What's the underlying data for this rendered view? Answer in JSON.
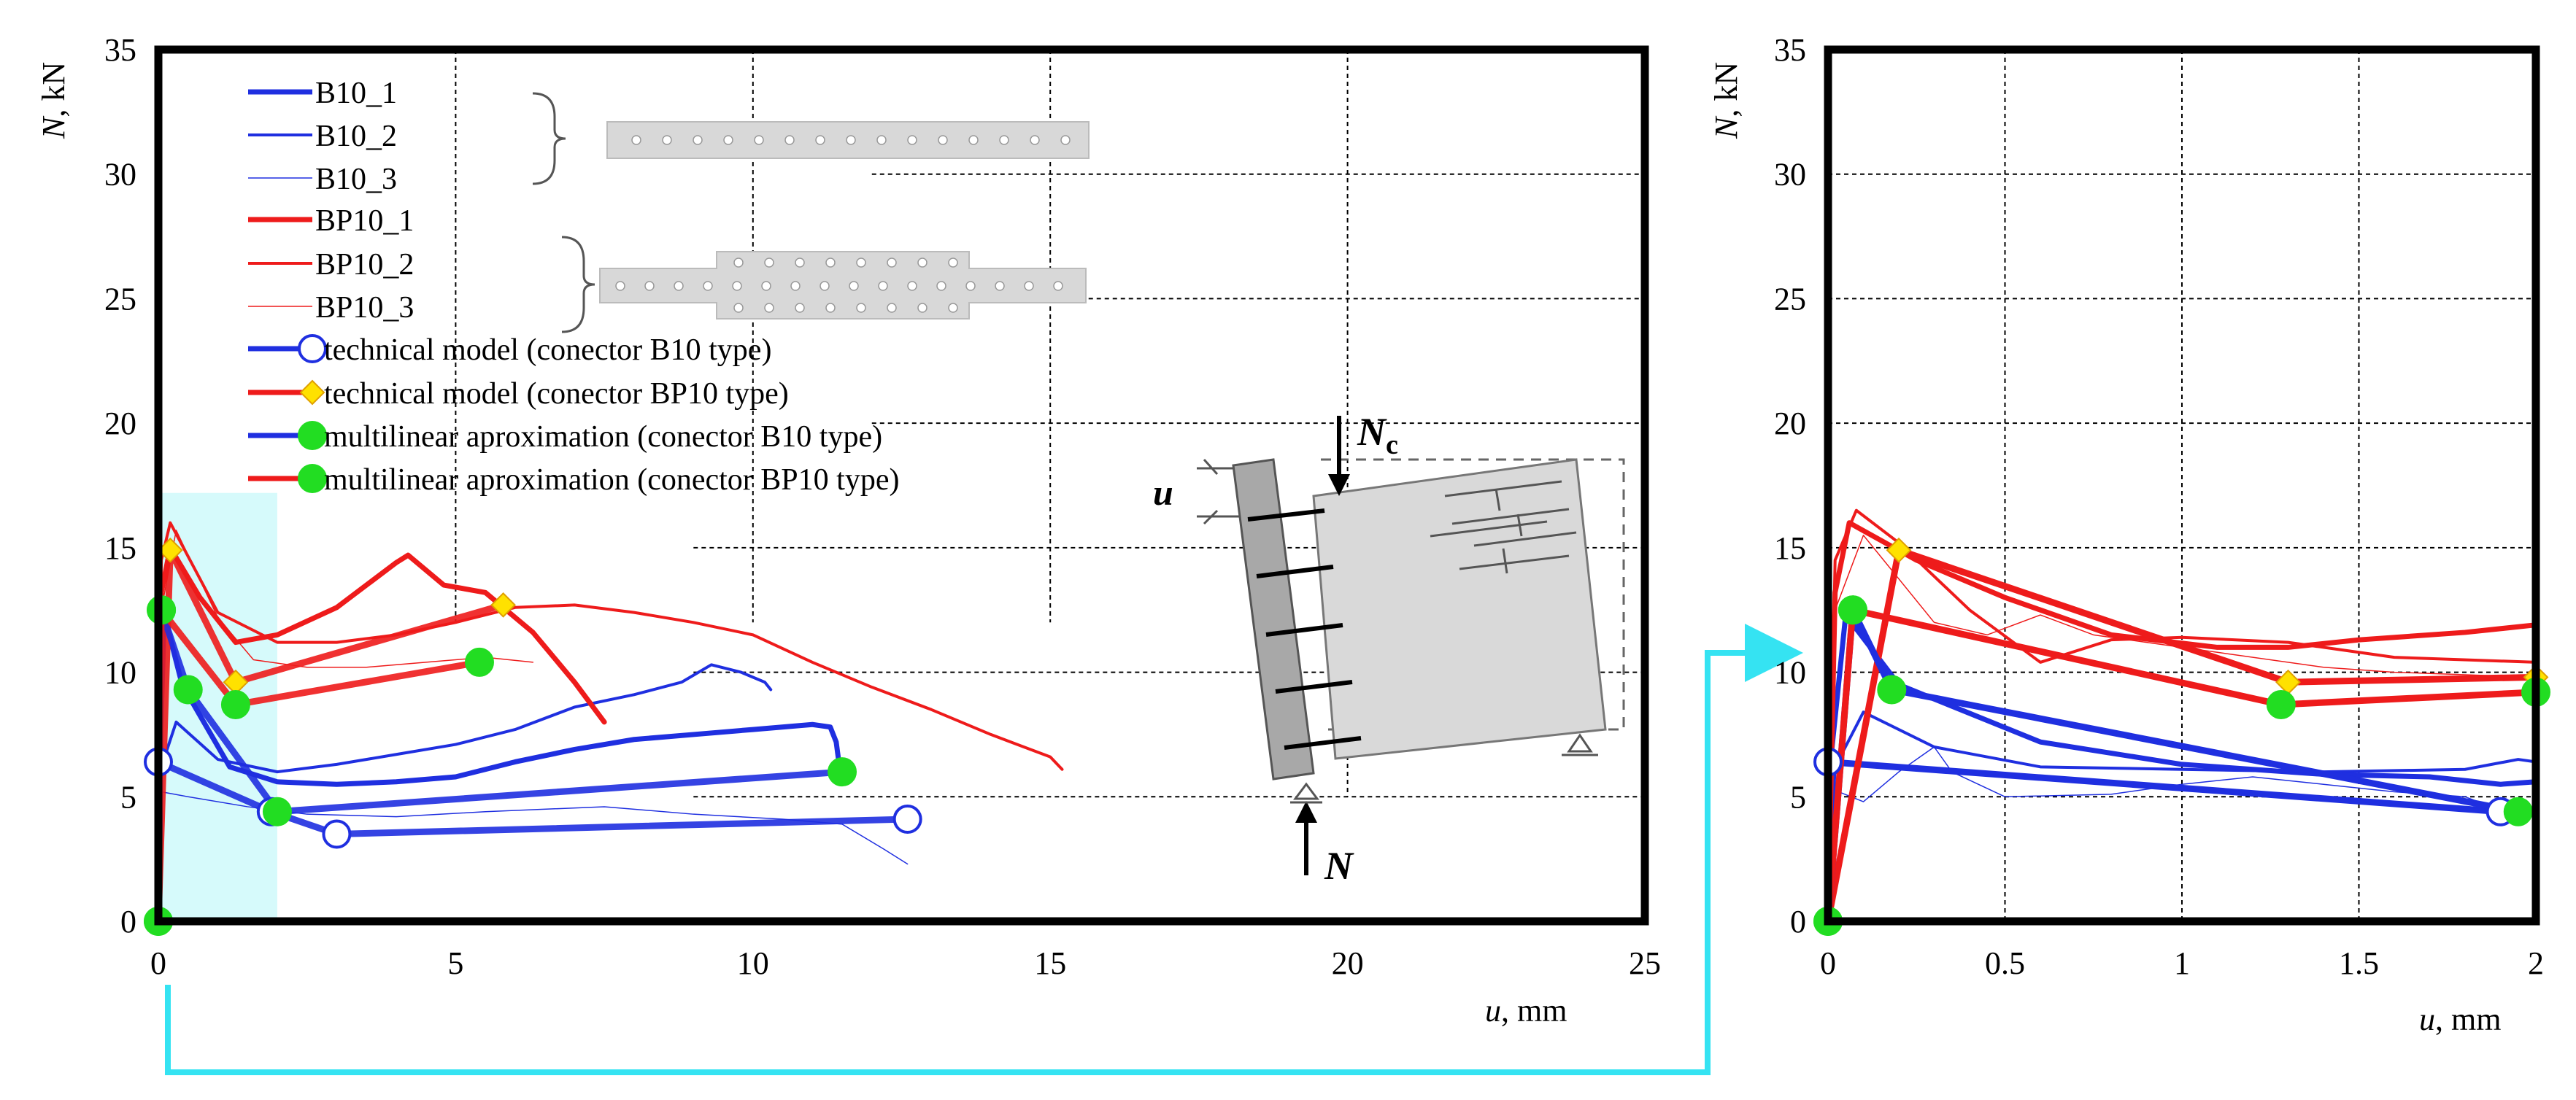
{
  "colors": {
    "blue": "#1f2fe0",
    "red": "#ee1b1b",
    "green": "#22dd22",
    "diamond": "#ffe100",
    "cyan": "#35e3f2",
    "highlight": "#d6fafb",
    "connector_fill": "#d8d8d8",
    "wall_light": "#d9d9d9",
    "wall_dark": "#a8a8a8"
  },
  "chart_data": [
    {
      "type": "line",
      "id": "left",
      "xlabel_var": "u",
      "xlabel_unit": ", mm",
      "ylabel_var": "N",
      "ylabel_unit": ", kN",
      "xlim": [
        0,
        25
      ],
      "ylim": [
        0,
        35
      ],
      "x_ticks": [
        0,
        5,
        10,
        15,
        20,
        25
      ],
      "y_ticks": [
        0,
        5,
        10,
        15,
        20,
        25,
        30,
        35
      ],
      "grid": "dashed, upper-right region",
      "highlight_region": {
        "x": [
          0,
          2
        ],
        "y": [
          0,
          17.2
        ]
      },
      "legend_position": "top-left",
      "legend": [
        {
          "label": "B10_1",
          "color": "blue",
          "width": 7,
          "marker": "none"
        },
        {
          "label": "B10_2",
          "color": "blue",
          "width": 4,
          "marker": "none"
        },
        {
          "label": "B10_3",
          "color": "blue",
          "width": 1.5,
          "marker": "none"
        },
        {
          "label": "BP10_1",
          "color": "red",
          "width": 7,
          "marker": "none"
        },
        {
          "label": "BP10_2",
          "color": "red",
          "width": 4,
          "marker": "none"
        },
        {
          "label": "BP10_3",
          "color": "red",
          "width": 1.5,
          "marker": "none"
        },
        {
          "label": "technical model (conector B10 type)",
          "color": "blue",
          "width": 7,
          "marker": "circle-open"
        },
        {
          "label": "technical model (conector BP10 type)",
          "color": "red",
          "width": 7,
          "marker": "diamond"
        },
        {
          "label": "multilinear aproximation (conector B10 type)",
          "color": "blue",
          "width": 7,
          "marker": "circle-green"
        },
        {
          "label": "multilinear aproximation (conector BP10 type)",
          "color": "red",
          "width": 7,
          "marker": "circle-green"
        }
      ],
      "series": [
        {
          "name": "B10_1",
          "color": "blue",
          "width": 7,
          "points": [
            [
              0,
              0
            ],
            [
              0.03,
              6.8
            ],
            [
              0.1,
              12.3
            ],
            [
              0.4,
              9.5
            ],
            [
              1.2,
              6.2
            ],
            [
              2,
              5.6
            ],
            [
              3,
              5.5
            ],
            [
              4,
              5.6
            ],
            [
              5,
              5.8
            ],
            [
              6,
              6.4
            ],
            [
              7,
              6.9
            ],
            [
              8,
              7.3
            ],
            [
              9,
              7.5
            ],
            [
              10,
              7.7
            ],
            [
              11,
              7.9
            ],
            [
              11.3,
              7.8
            ],
            [
              11.4,
              7.2
            ],
            [
              11.45,
              6.3
            ]
          ]
        },
        {
          "name": "B10_2",
          "color": "blue",
          "width": 4,
          "points": [
            [
              0,
              0
            ],
            [
              0.05,
              6.2
            ],
            [
              0.3,
              8.0
            ],
            [
              1,
              6.5
            ],
            [
              2,
              6.0
            ],
            [
              3,
              6.3
            ],
            [
              4,
              6.7
            ],
            [
              5,
              7.1
            ],
            [
              6,
              7.7
            ],
            [
              7,
              8.6
            ],
            [
              8,
              9.1
            ],
            [
              8.8,
              9.6
            ],
            [
              9.3,
              10.3
            ],
            [
              9.8,
              10.0
            ],
            [
              10.2,
              9.6
            ],
            [
              10.3,
              9.3
            ]
          ]
        },
        {
          "name": "B10_3",
          "color": "blue",
          "width": 1.5,
          "points": [
            [
              0,
              0
            ],
            [
              0.05,
              5.2
            ],
            [
              0.5,
              5.0
            ],
            [
              1.5,
              4.6
            ],
            [
              2.5,
              4.3
            ],
            [
              4,
              4.2
            ],
            [
              5.5,
              4.4
            ],
            [
              7.5,
              4.6
            ],
            [
              9,
              4.3
            ],
            [
              10.5,
              4.1
            ],
            [
              11.5,
              3.9
            ],
            [
              12.2,
              2.9
            ],
            [
              12.6,
              2.3
            ]
          ]
        },
        {
          "name": "BP10_1",
          "color": "red",
          "width": 7,
          "points": [
            [
              0,
              0
            ],
            [
              0.05,
              13.2
            ],
            [
              0.2,
              15.0
            ],
            [
              0.7,
              13.0
            ],
            [
              1.3,
              11.2
            ],
            [
              2,
              11.5
            ],
            [
              3,
              12.6
            ],
            [
              4,
              14.4
            ],
            [
              4.2,
              14.7
            ],
            [
              4.8,
              13.5
            ],
            [
              5.5,
              13.2
            ],
            [
              6.3,
              11.6
            ],
            [
              7,
              9.6
            ],
            [
              7.5,
              8.0
            ]
          ]
        },
        {
          "name": "BP10_2",
          "color": "red",
          "width": 4,
          "points": [
            [
              0,
              0
            ],
            [
              0.05,
              14.5
            ],
            [
              0.2,
              16.0
            ],
            [
              1,
              12.4
            ],
            [
              2,
              11.2
            ],
            [
              3,
              11.2
            ],
            [
              4,
              11.5
            ],
            [
              5,
              12.0
            ],
            [
              6,
              12.6
            ],
            [
              7,
              12.7
            ],
            [
              8,
              12.4
            ],
            [
              9,
              12.0
            ],
            [
              10,
              11.5
            ],
            [
              11,
              10.4
            ],
            [
              12,
              9.4
            ],
            [
              13,
              8.5
            ],
            [
              14,
              7.5
            ],
            [
              15,
              6.6
            ],
            [
              15.2,
              6.1
            ]
          ]
        },
        {
          "name": "BP10_3",
          "color": "red",
          "width": 1.5,
          "points": [
            [
              0,
              0
            ],
            [
              0.05,
              12.5
            ],
            [
              0.3,
              15.7
            ],
            [
              1,
              12.2
            ],
            [
              1.6,
              10.5
            ],
            [
              2.5,
              10.2
            ],
            [
              3.5,
              10.2
            ],
            [
              4.5,
              10.4
            ],
            [
              5.5,
              10.6
            ],
            [
              6.3,
              10.4
            ]
          ]
        }
      ],
      "models": [
        {
          "name": "technical model B10",
          "color": "blue",
          "marker": "circle-open",
          "points": [
            [
              0,
              6.4
            ],
            [
              1.9,
              4.4
            ],
            [
              3,
              3.5
            ],
            [
              12.6,
              4.1
            ]
          ]
        },
        {
          "name": "technical model BP10",
          "color": "red",
          "marker": "diamond",
          "points": [
            [
              0,
              0
            ],
            [
              0.2,
              14.9
            ],
            [
              1.3,
              9.6
            ],
            [
              5.8,
              12.7
            ]
          ]
        },
        {
          "name": "multilinear B10",
          "color": "blue",
          "marker": "circle-green",
          "points": [
            [
              0,
              0
            ],
            [
              0.05,
              12.5
            ],
            [
              0.5,
              9.3
            ],
            [
              2,
              4.4
            ],
            [
              11.5,
              6.0
            ]
          ]
        },
        {
          "name": "multilinear BP10",
          "color": "red",
          "marker": "circle-green",
          "points": [
            [
              0,
              0
            ],
            [
              0.05,
              12.5
            ],
            [
              1.3,
              8.7
            ],
            [
              5.4,
              10.4
            ]
          ]
        }
      ],
      "schematic": {
        "label_u": "u",
        "label_Nc_main": "N",
        "label_Nc_sub": "c",
        "label_N": "N"
      }
    },
    {
      "type": "line",
      "id": "right",
      "xlabel_var": "u",
      "xlabel_unit": ", mm",
      "ylabel_var": "N",
      "ylabel_unit": ", kN",
      "xlim": [
        0,
        2
      ],
      "ylim": [
        0,
        35
      ],
      "x_ticks": [
        0,
        0.5,
        1,
        1.5,
        2
      ],
      "x_tick_labels": [
        "0",
        "0.5",
        "1",
        "1.5",
        "2"
      ],
      "y_ticks": [
        0,
        5,
        10,
        15,
        20,
        25,
        30,
        35
      ],
      "grid": "dashed",
      "series": [
        {
          "name": "B10_1",
          "color": "blue",
          "width": 7,
          "points": [
            [
              0,
              0
            ],
            [
              0.01,
              6.8
            ],
            [
              0.05,
              12.3
            ],
            [
              0.2,
              9.5
            ],
            [
              0.6,
              7.2
            ],
            [
              1.0,
              6.3
            ],
            [
              1.4,
              5.9
            ],
            [
              1.7,
              5.8
            ],
            [
              1.9,
              5.5
            ],
            [
              2,
              5.6
            ]
          ]
        },
        {
          "name": "B10_2",
          "color": "blue",
          "width": 4,
          "points": [
            [
              0,
              0
            ],
            [
              0.02,
              6.2
            ],
            [
              0.1,
              8.4
            ],
            [
              0.3,
              7.0
            ],
            [
              0.6,
              6.2
            ],
            [
              1.0,
              6.1
            ],
            [
              1.4,
              6.0
            ],
            [
              1.8,
              6.1
            ],
            [
              1.95,
              6.5
            ],
            [
              2,
              6.4
            ]
          ]
        },
        {
          "name": "B10_3",
          "color": "blue",
          "width": 1.5,
          "points": [
            [
              0,
              0
            ],
            [
              0.03,
              5.2
            ],
            [
              0.1,
              4.8
            ],
            [
              0.2,
              6.0
            ],
            [
              0.3,
              7.0
            ],
            [
              0.35,
              6.0
            ],
            [
              0.5,
              5.0
            ],
            [
              0.8,
              5.1
            ],
            [
              1.0,
              5.5
            ],
            [
              1.2,
              5.8
            ],
            [
              1.4,
              5.5
            ],
            [
              1.6,
              5.2
            ],
            [
              1.8,
              5.0
            ],
            [
              1.95,
              4.2
            ],
            [
              2,
              4.6
            ]
          ]
        },
        {
          "name": "BP10_1",
          "color": "red",
          "width": 7,
          "points": [
            [
              0,
              0
            ],
            [
              0.02,
              13.2
            ],
            [
              0.06,
              16.0
            ],
            [
              0.25,
              14.5
            ],
            [
              0.5,
              13.0
            ],
            [
              0.8,
              11.5
            ],
            [
              1.1,
              11.0
            ],
            [
              1.3,
              11.0
            ],
            [
              1.5,
              11.3
            ],
            [
              1.8,
              11.6
            ],
            [
              2,
              11.9
            ]
          ]
        },
        {
          "name": "BP10_2",
          "color": "red",
          "width": 4,
          "points": [
            [
              0,
              0
            ],
            [
              0.02,
              14.5
            ],
            [
              0.08,
              16.5
            ],
            [
              0.2,
              15.2
            ],
            [
              0.4,
              12.5
            ],
            [
              0.6,
              10.4
            ],
            [
              0.8,
              11.3
            ],
            [
              1.0,
              11.4
            ],
            [
              1.3,
              11.2
            ],
            [
              1.6,
              10.6
            ],
            [
              2,
              10.4
            ]
          ]
        },
        {
          "name": "BP10_3",
          "color": "red",
          "width": 1.5,
          "points": [
            [
              0,
              0
            ],
            [
              0.02,
              12.5
            ],
            [
              0.1,
              15.5
            ],
            [
              0.3,
              12.0
            ],
            [
              0.45,
              11.5
            ],
            [
              0.6,
              12.3
            ],
            [
              0.75,
              11.5
            ],
            [
              0.9,
              11.2
            ],
            [
              1.1,
              10.8
            ],
            [
              1.4,
              10.2
            ],
            [
              1.6,
              10.0
            ],
            [
              2,
              9.8
            ]
          ]
        }
      ],
      "models": [
        {
          "name": "technical model B10",
          "color": "blue",
          "marker": "circle-open",
          "points": [
            [
              0,
              6.4
            ],
            [
              1.9,
              4.4
            ]
          ]
        },
        {
          "name": "technical model BP10",
          "color": "red",
          "marker": "diamond",
          "points": [
            [
              0,
              0
            ],
            [
              0.2,
              14.9
            ],
            [
              1.3,
              9.6
            ],
            [
              2,
              9.8
            ]
          ]
        },
        {
          "name": "multilinear B10",
          "color": "blue",
          "marker": "circle-green",
          "points": [
            [
              0,
              0
            ],
            [
              0.07,
              12.5
            ],
            [
              0.18,
              9.3
            ],
            [
              1.95,
              4.4
            ]
          ]
        },
        {
          "name": "multilinear BP10",
          "color": "red",
          "marker": "circle-green",
          "points": [
            [
              0,
              0
            ],
            [
              0.07,
              12.5
            ],
            [
              1.28,
              8.7
            ],
            [
              2,
              9.2
            ]
          ]
        }
      ]
    }
  ]
}
